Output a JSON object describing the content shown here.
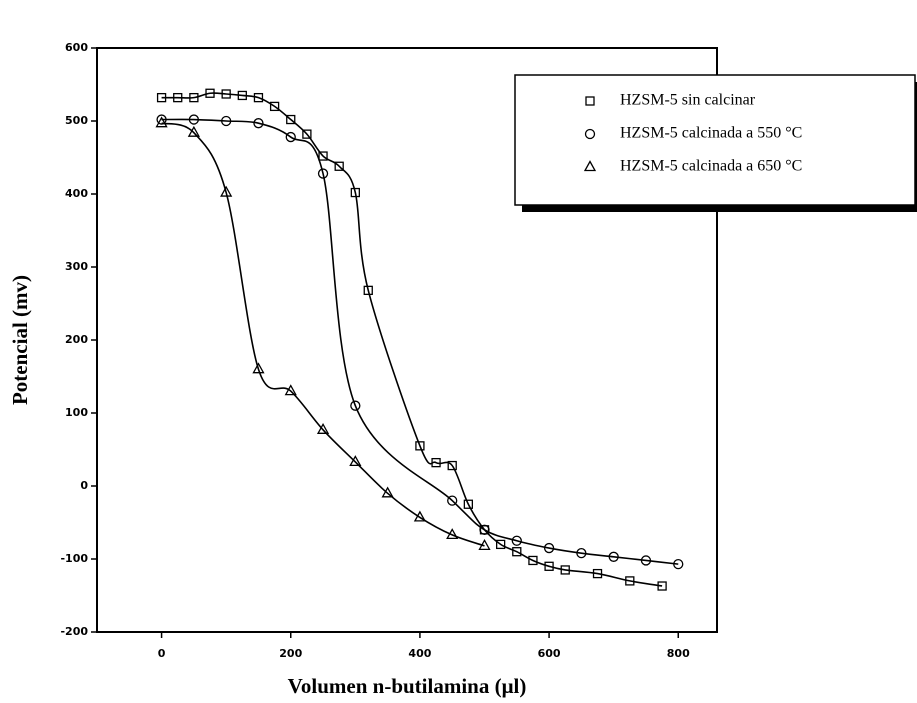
{
  "chart_data": {
    "type": "scatter",
    "xlabel": "Volumen n-butilamina (μl)",
    "ylabel": "Potencial (mv)",
    "xlim": [
      -100,
      860
    ],
    "xticks": [
      0,
      200,
      400,
      600,
      800
    ],
    "ylim": [
      -200,
      600
    ],
    "yticks": [
      -200,
      -100,
      0,
      100,
      200,
      300,
      400,
      500,
      600
    ],
    "legend": "upper right",
    "series": [
      {
        "name": "HZSM-5 sin calcinar",
        "color": "#000000",
        "marker": "square",
        "x": [
          0,
          25,
          50,
          75,
          100,
          125,
          150,
          175,
          200,
          225,
          250,
          275,
          300,
          320,
          400,
          425,
          450,
          475,
          500,
          525,
          550,
          575,
          600,
          625,
          675,
          725,
          775
        ],
        "values": [
          532,
          532,
          532,
          538,
          537,
          535,
          532,
          520,
          502,
          482,
          452,
          438,
          402,
          268,
          55,
          32,
          28,
          -25,
          -60,
          -80,
          -90,
          -102,
          -110,
          -115,
          -120,
          -130,
          -137
        ]
      },
      {
        "name": "HZSM-5 calcinada a 550 °C",
        "color": "#000000",
        "marker": "circle",
        "x": [
          0,
          50,
          100,
          150,
          200,
          250,
          300,
          450,
          500,
          550,
          600,
          650,
          700,
          750,
          800
        ],
        "values": [
          502,
          502,
          500,
          497,
          478,
          428,
          110,
          -20,
          -60,
          -75,
          -85,
          -92,
          -97,
          -102,
          -107
        ]
      },
      {
        "name": "HZSM-5 calcinada a 650 °C",
        "color": "#000000",
        "marker": "triangle",
        "x": [
          0,
          50,
          100,
          150,
          200,
          250,
          300,
          350,
          400,
          450,
          500
        ],
        "values": [
          497,
          484,
          402,
          160,
          130,
          77,
          33,
          -10,
          -43,
          -67,
          -82
        ]
      }
    ]
  }
}
